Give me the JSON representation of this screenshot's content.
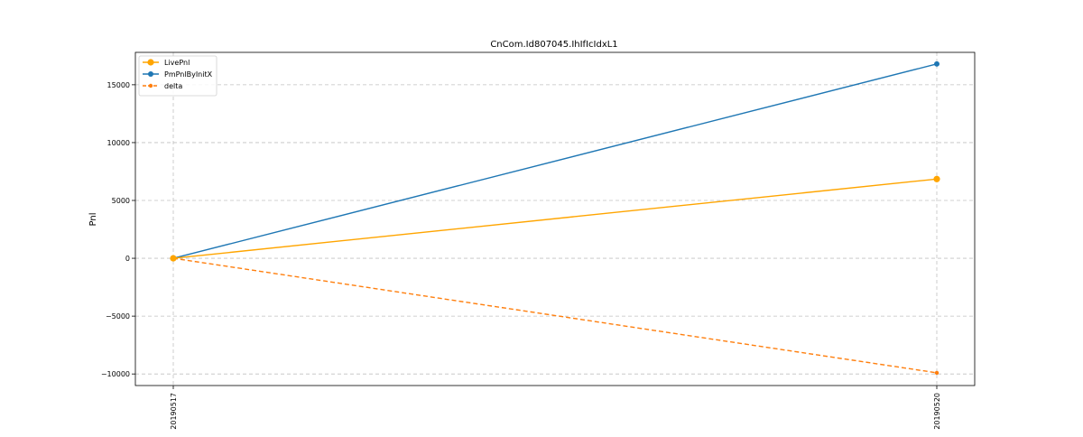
{
  "chart_data": {
    "type": "line",
    "title": "CnCom.Id807045.IhIfIcIdxL1",
    "xlabel": "",
    "ylabel": "Pnl",
    "categories": [
      "20190517",
      "20190520"
    ],
    "ylim": [
      -11000,
      17800
    ],
    "yticks": [
      -10000,
      -5000,
      0,
      5000,
      10000,
      15000
    ],
    "ytick_labels": [
      "−10000",
      "−5000",
      "0",
      "5000",
      "10000",
      "15000"
    ],
    "grid": true,
    "grid_style": "dashed",
    "legend_position": "top-left",
    "series": [
      {
        "name": "LivePnl",
        "values": [
          0,
          6850
        ],
        "color": "#ffa500",
        "linestyle": "solid",
        "marker": "circle-large"
      },
      {
        "name": "PmPnlByInitX",
        "values": [
          0,
          16800
        ],
        "color": "#1f77b4",
        "linestyle": "solid",
        "marker": "circle"
      },
      {
        "name": "delta",
        "values": [
          0,
          -9900
        ],
        "color": "#ff7f0e",
        "linestyle": "dashed",
        "marker": "circle-small"
      }
    ]
  }
}
